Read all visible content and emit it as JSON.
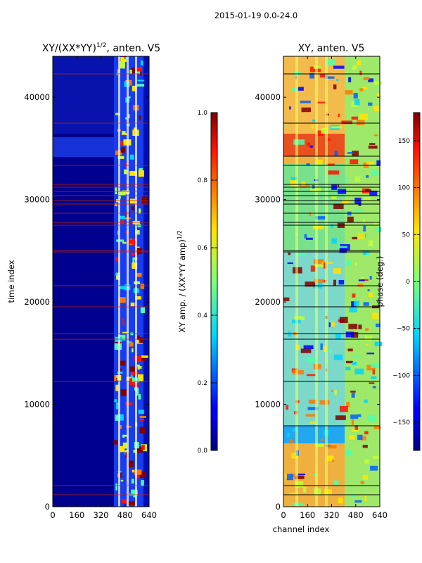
{
  "figure_title": "2015-01-19 0.0-24.0",
  "chart_data": [
    {
      "type": "heatmap",
      "title": "XY/(XX*YY)^1/2, anten. V5",
      "title_main": "XY/(XX*YY)",
      "title_exp": "1/2",
      "title_rest": ", anten. V5",
      "xlabel": "",
      "ylabel": "time index",
      "x_ticks": [
        0,
        160,
        320,
        480,
        640
      ],
      "y_ticks": [
        0,
        10000,
        20000,
        30000,
        40000
      ],
      "xlim": [
        0,
        640
      ],
      "ylim": [
        0,
        44000
      ],
      "colorbar": {
        "label": "XY amp. / (XX*YY amp)^1/2",
        "label_main": "XY amp. / (XX*YY amp)",
        "label_exp": "1/2",
        "ticks": [
          "0.0",
          "0.2",
          "0.4",
          "0.6",
          "0.8",
          "1.0"
        ],
        "range": [
          0.0,
          1.0
        ],
        "colormap": "jet"
      }
    },
    {
      "type": "heatmap",
      "title": "XY, anten. V5",
      "xlabel": "channel index",
      "ylabel": "",
      "x_ticks": [
        0,
        160,
        320,
        480,
        640
      ],
      "y_ticks": [
        0,
        10000,
        20000,
        30000,
        40000
      ],
      "xlim": [
        0,
        640
      ],
      "ylim": [
        0,
        44000
      ],
      "colorbar": {
        "label": "phase (deg.)",
        "ticks": [
          "−150",
          "−100",
          "−50",
          "0",
          "50",
          "100",
          "150"
        ],
        "tick_values": [
          -150,
          -100,
          -50,
          0,
          50,
          100,
          150
        ],
        "range": [
          -180,
          180
        ],
        "colormap": "jet"
      }
    }
  ]
}
